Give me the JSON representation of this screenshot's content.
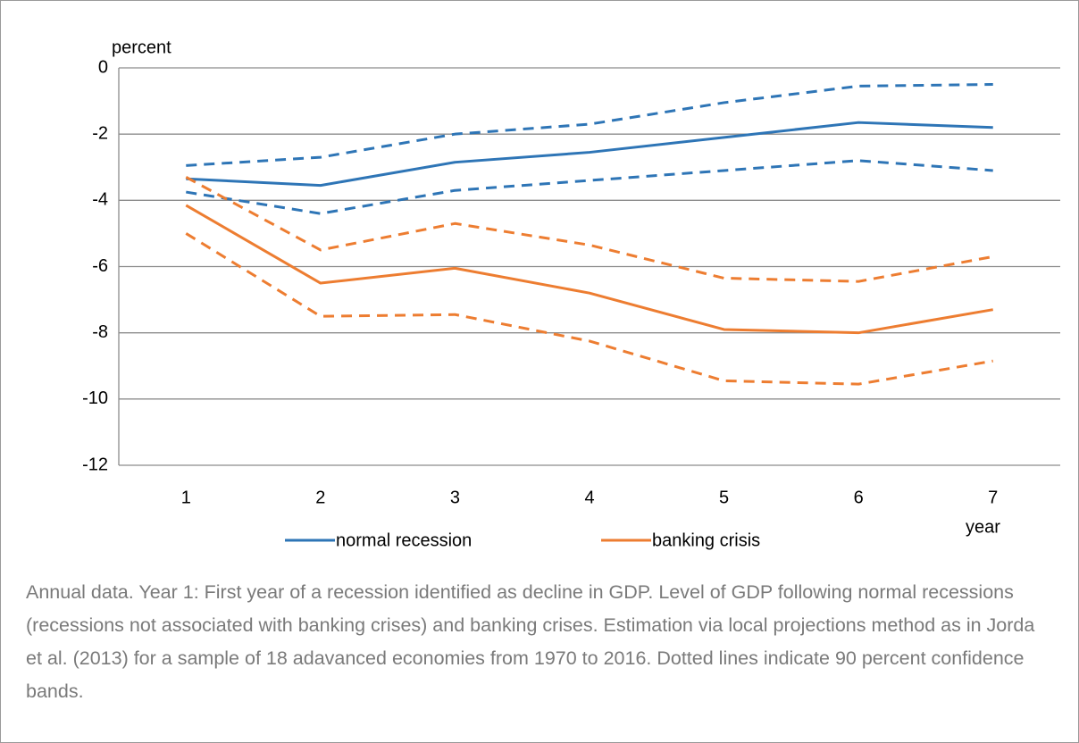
{
  "chart_data": {
    "type": "line",
    "y_label": "percent",
    "x_label": "year",
    "categories": [
      "1",
      "2",
      "3",
      "4",
      "5",
      "6",
      "7"
    ],
    "series": [
      {
        "name": "normal recession",
        "color": "#2e75b6",
        "dashed": false,
        "values": [
          -3.35,
          -3.55,
          -2.85,
          -2.55,
          -2.1,
          -1.65,
          -1.8
        ]
      },
      {
        "color": "#2e75b6",
        "dashed": true,
        "values": [
          -2.95,
          -2.7,
          -2.0,
          -1.7,
          -1.05,
          -0.55,
          -0.5
        ]
      },
      {
        "color": "#2e75b6",
        "dashed": true,
        "values": [
          -3.75,
          -4.4,
          -3.7,
          -3.4,
          -3.1,
          -2.8,
          -3.1
        ]
      },
      {
        "name": "banking crisis",
        "color": "#ed7d31",
        "dashed": false,
        "values": [
          -4.15,
          -6.5,
          -6.05,
          -6.8,
          -7.9,
          -8.0,
          -7.3
        ]
      },
      {
        "color": "#ed7d31",
        "dashed": true,
        "values": [
          -3.3,
          -5.5,
          -4.7,
          -5.35,
          -6.35,
          -6.45,
          -5.7
        ]
      },
      {
        "color": "#ed7d31",
        "dashed": true,
        "values": [
          -5.0,
          -7.5,
          -7.45,
          -8.25,
          -9.45,
          -9.55,
          -8.85
        ]
      }
    ],
    "ylim": [
      -12,
      0
    ],
    "yticks": [
      0,
      -2,
      -4,
      -6,
      -8,
      -10,
      -12
    ],
    "grid": true,
    "legend": "bottom",
    "caption": "Annual data. Year 1: First year of a recession identified as  decline in GDP.  Level of GDP following normal recessions (recessions not associated with banking crises) and banking crises. Estimation via local projections method as in Jorda et al. (2013) for a sample of 18 adavanced economies from 1970 to 2016. Dotted lines indicate 90 percent confidence  bands."
  }
}
